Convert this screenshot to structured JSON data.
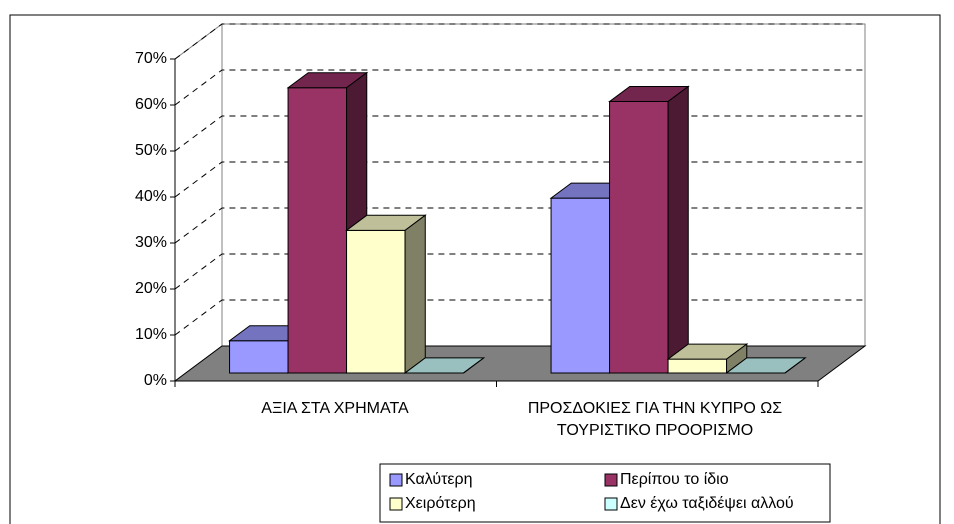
{
  "chart_data": {
    "type": "bar3d",
    "categories": [
      "ΑΞΙΑ ΣΤΑ ΧΡΗΜΑΤΑ",
      "ΠΡΟΣΔΟΚΙΕΣ ΓΙΑ ΤΗΝ ΚΥΠΡΟ ΩΣ ΤΟΥΡΙΣΤΙΚΟ ΠΡΟΟΡΙΣΜΟ"
    ],
    "series": [
      {
        "name": "Καλύτερη",
        "color": "#9999ff",
        "values": [
          7,
          38
        ]
      },
      {
        "name": "Περίπου το ίδιο",
        "color": "#993366",
        "values": [
          62,
          59
        ]
      },
      {
        "name": "Χειρότερη",
        "color": "#ffffcc",
        "values": [
          31,
          3
        ]
      },
      {
        "name": "Δεν έχω ταξιδέψει αλλού",
        "color": "#ccffff",
        "values": [
          0,
          0
        ]
      }
    ],
    "ylim": [
      0,
      70
    ],
    "yticks": [
      {
        "value": 0,
        "label": "0%"
      },
      {
        "value": 10,
        "label": "10%"
      },
      {
        "value": 20,
        "label": "20%"
      },
      {
        "value": 30,
        "label": "30%"
      },
      {
        "value": 40,
        "label": "40%"
      },
      {
        "value": 50,
        "label": "50%"
      },
      {
        "value": 60,
        "label": "60%"
      },
      {
        "value": 70,
        "label": "70%"
      }
    ],
    "grid": true
  }
}
